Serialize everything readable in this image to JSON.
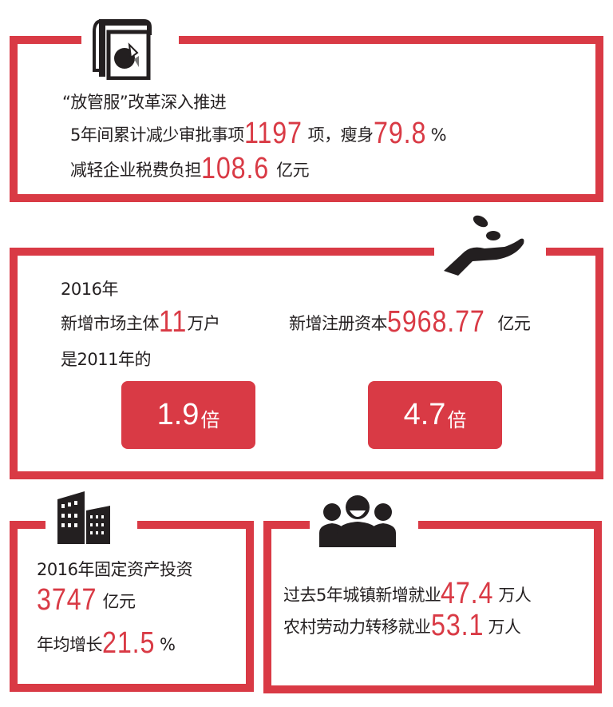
{
  "accent_color": "#d93a45",
  "section1": {
    "icon": "chart-document-icon",
    "title": "“放管服”改革深入推进",
    "line2": {
      "prefix": "5年间累计减少审批事项",
      "num1": "1197",
      "mid": "项，瘦身",
      "num2": "79.8",
      "suffix": "%"
    },
    "line3": {
      "prefix": "减轻企业税费负担",
      "num": "108.6",
      "suffix": "亿元"
    }
  },
  "section2": {
    "icon": "hand-coins-icon",
    "year": "2016年",
    "left": {
      "prefix": "新增市场主体",
      "num": "11",
      "suffix": "万户"
    },
    "right": {
      "prefix": "新增注册资本",
      "num": "5968.77",
      "suffix": "亿元"
    },
    "compare": "是2011年的",
    "badge1": {
      "num": "1.9",
      "unit": "倍"
    },
    "badge2": {
      "num": "4.7",
      "unit": "倍"
    }
  },
  "section3": {
    "icon": "buildings-icon",
    "line1": "2016年固定资产投资",
    "line2": {
      "num": "3747",
      "suffix": "亿元"
    },
    "line3": {
      "prefix": "年均增长",
      "num": "21.5",
      "suffix": "%"
    }
  },
  "section4": {
    "icon": "workers-icon",
    "line1": {
      "prefix": "过去5年城镇新增就业",
      "num": "47.4",
      "suffix": "万人"
    },
    "line2": {
      "prefix": "农村劳动力转移就业",
      "num": "53.1",
      "suffix": "万人"
    }
  }
}
